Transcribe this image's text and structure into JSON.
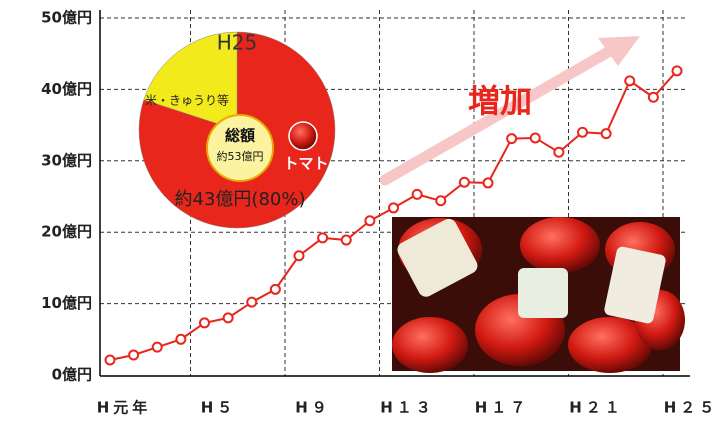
{
  "chart_data": [
    {
      "type": "line",
      "categories": [
        "H元年",
        null,
        null,
        null,
        "H５",
        null,
        null,
        null,
        "H９",
        null,
        null,
        null,
        "H１３",
        null,
        null,
        null,
        "H１７",
        null,
        null,
        null,
        "H２１",
        null,
        null,
        null,
        "H２５"
      ],
      "series": [
        {
          "color": "#e8261c",
          "values": [
            2.1,
            2.8,
            3.9,
            5.0,
            7.3,
            8.0,
            10.2,
            12.0,
            16.7,
            19.2,
            18.9,
            21.6,
            23.4,
            25.3,
            24.4,
            27.0,
            26.9,
            33.1,
            33.2,
            31.2,
            34.0,
            33.8,
            41.2,
            38.9,
            42.6
          ]
        }
      ],
      "ylim": [
        0,
        50
      ],
      "yticks": [
        {
          "value": 0,
          "label": "0億円"
        },
        {
          "value": 10,
          "label": "10億円"
        },
        {
          "value": 20,
          "label": "20億円"
        },
        {
          "value": 30,
          "label": "30億円"
        },
        {
          "value": 40,
          "label": "40億円"
        },
        {
          "value": 50,
          "label": "50億円"
        }
      ],
      "grid": true,
      "annotation": "増加"
    },
    {
      "type": "pie",
      "title": "H25",
      "categories": [
        "トマト",
        "米・きゅうり等"
      ],
      "colors": [
        "#e8261c",
        "#f2ea1a"
      ],
      "values": [
        80,
        20
      ],
      "center_title": "総額",
      "center_value": "約53億円",
      "annotation": "約43億円(80%)"
    }
  ]
}
